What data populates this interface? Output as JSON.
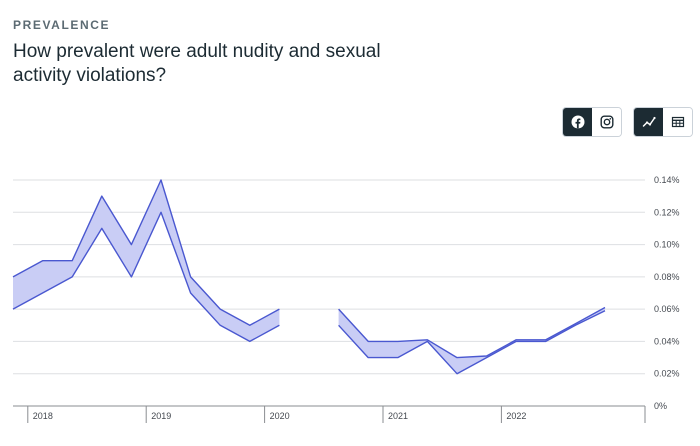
{
  "header": {
    "eyebrow": "PREVALENCE",
    "title": "How prevalent were adult nudity and sexual activity violations?"
  },
  "controls": {
    "platforms": [
      {
        "name": "facebook-icon",
        "active": true
      },
      {
        "name": "instagram-icon",
        "active": false
      }
    ],
    "views": [
      {
        "name": "line-chart-icon",
        "active": true
      },
      {
        "name": "table-icon",
        "active": false
      }
    ]
  },
  "colors": {
    "band_fill": "#c9cdf5",
    "band_line": "#4a58d0",
    "grid": "#dddfe2",
    "text": "#1c2b33"
  },
  "chart_data": {
    "type": "area",
    "x_quarter_index_start": 0,
    "x_ticks": [
      "2018",
      "2019",
      "2020",
      "2021",
      "2022"
    ],
    "y_ticks": [
      "0.14%",
      "0.12%",
      "0.10%",
      "0.08%",
      "0.06%",
      "0.04%",
      "0.02%",
      "0%"
    ],
    "ylim": [
      0,
      0.14
    ],
    "series": [
      {
        "name": "upper",
        "segments": [
          [
            [
              2017.75,
              0.08
            ],
            [
              2018.0,
              0.09
            ],
            [
              2018.25,
              0.09
            ],
            [
              2018.5,
              0.13
            ],
            [
              2018.75,
              0.1
            ],
            [
              2019.0,
              0.14
            ],
            [
              2019.25,
              0.08
            ],
            [
              2019.5,
              0.06
            ],
            [
              2019.75,
              0.05
            ],
            [
              2020.0,
              0.06
            ]
          ],
          [
            [
              2020.5,
              0.06
            ],
            [
              2020.75,
              0.04
            ],
            [
              2021.0,
              0.04
            ],
            [
              2021.25,
              0.041
            ],
            [
              2021.5,
              0.03
            ],
            [
              2021.75,
              0.031
            ],
            [
              2022.0,
              0.041
            ],
            [
              2022.25,
              0.041
            ],
            [
              2022.5,
              0.051
            ],
            [
              2022.75,
              0.061
            ]
          ]
        ]
      },
      {
        "name": "lower",
        "segments": [
          [
            [
              2017.75,
              0.06
            ],
            [
              2018.0,
              0.07
            ],
            [
              2018.25,
              0.08
            ],
            [
              2018.5,
              0.11
            ],
            [
              2018.75,
              0.08
            ],
            [
              2019.0,
              0.12
            ],
            [
              2019.25,
              0.07
            ],
            [
              2019.5,
              0.05
            ],
            [
              2019.75,
              0.04
            ],
            [
              2020.0,
              0.05
            ]
          ],
          [
            [
              2020.5,
              0.05
            ],
            [
              2020.75,
              0.03
            ],
            [
              2021.0,
              0.03
            ],
            [
              2021.25,
              0.04
            ],
            [
              2021.5,
              0.02
            ],
            [
              2021.75,
              0.03
            ],
            [
              2022.0,
              0.04
            ],
            [
              2022.25,
              0.04
            ],
            [
              2022.5,
              0.05
            ],
            [
              2022.75,
              0.059
            ]
          ]
        ]
      }
    ]
  }
}
